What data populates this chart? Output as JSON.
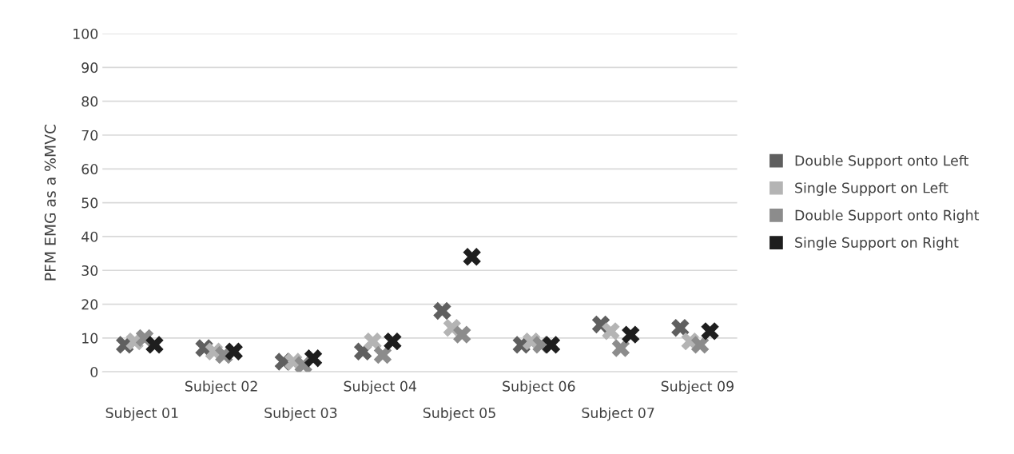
{
  "chart_data": {
    "type": "scatter",
    "ylabel": "PFM EMG as a %MVC",
    "categories": [
      "Subject 01",
      "Subject 02",
      "Subject 03",
      "Subject 04",
      "Subject 05",
      "Subject 06",
      "Subject 07",
      "Subject 09"
    ],
    "series": [
      {
        "name": "Double Support onto Left",
        "color": "#5f5f5f",
        "values": [
          8,
          7,
          3,
          6,
          18,
          8,
          14,
          13
        ]
      },
      {
        "name": "Single Support on Left",
        "color": "#b4b4b4",
        "values": [
          9,
          6,
          3,
          9,
          13,
          9,
          12,
          9
        ]
      },
      {
        "name": "Double Support onto Right",
        "color": "#8c8c8c",
        "values": [
          10,
          5,
          2,
          5,
          11,
          8,
          7,
          8
        ]
      },
      {
        "name": "Single Support on Right",
        "color": "#1e1e1e",
        "values": [
          8,
          6,
          4,
          9,
          34,
          8,
          11,
          12
        ]
      }
    ],
    "ylim": [
      0,
      100
    ],
    "yticks": [
      0,
      10,
      20,
      30,
      40,
      50,
      60,
      70,
      80,
      90,
      100
    ],
    "grid": "y",
    "legend": "right",
    "marker": "cross"
  }
}
